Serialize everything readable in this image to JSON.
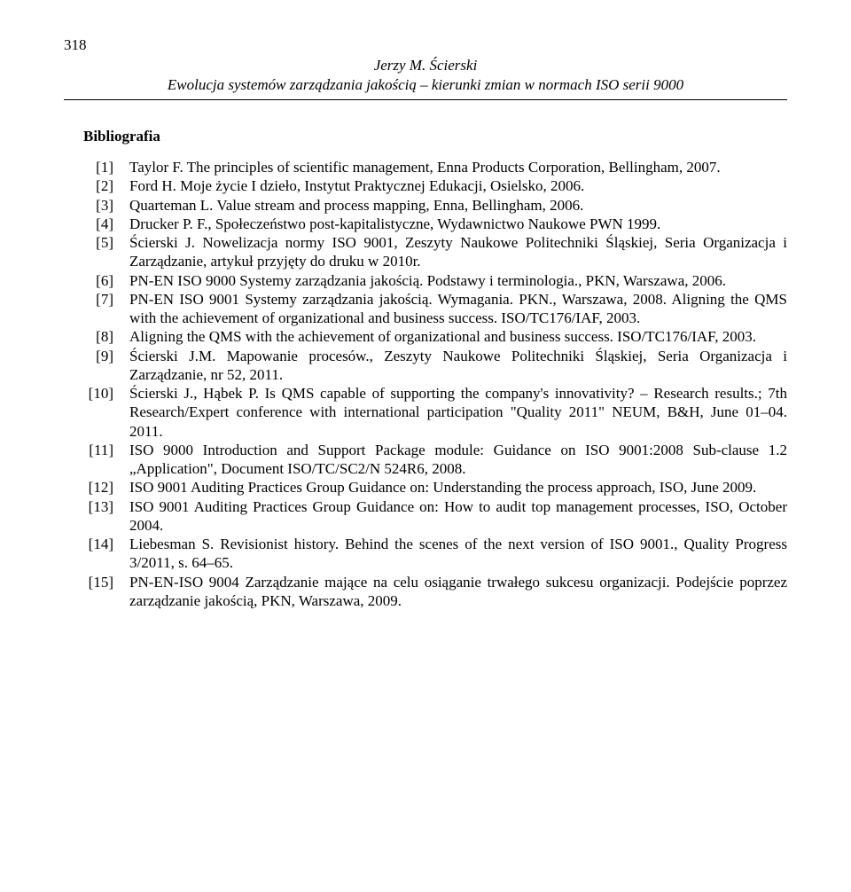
{
  "page_number": "318",
  "header": {
    "author": "Jerzy M. Ścierski",
    "title": "Ewolucja systemów zarządzania jakością – kierunki zmian w normach ISO serii 9000"
  },
  "section_heading": "Bibliografia",
  "bibliography": [
    {
      "num": "[1]",
      "text": "Taylor F. The principles of scientific management, Enna Products Corporation, Bellingham, 2007."
    },
    {
      "num": "[2]",
      "text": "Ford H. Moje życie I dzieło, Instytut Praktycznej Edukacji, Osielsko, 2006."
    },
    {
      "num": "[3]",
      "text": "Quarteman L. Value stream and process mapping, Enna, Bellingham, 2006."
    },
    {
      "num": "[4]",
      "text": "Drucker P. F., Społeczeństwo post-kapitalistyczne, Wydawnictwo Naukowe PWN 1999."
    },
    {
      "num": "[5]",
      "text": "Ścierski J. Nowelizacja normy ISO 9001, Zeszyty Naukowe Politechniki Śląskiej, Seria Organizacja i Zarządzanie, artykuł przyjęty do druku w 2010r."
    },
    {
      "num": "[6]",
      "text": "PN-EN ISO 9000 Systemy zarządzania jakością. Podstawy i terminologia., PKN, Warszawa, 2006."
    },
    {
      "num": "[7]",
      "text": "PN-EN ISO 9001 Systemy zarządzania jakością. Wymagania. PKN., Warszawa, 2008. Aligning the QMS with the achievement of organizational and business success. ISO/TC176/IAF, 2003."
    },
    {
      "num": "[8]",
      "text": "Aligning the QMS with the achievement of organizational and business success. ISO/TC176/IAF, 2003."
    },
    {
      "num": "[9]",
      "text": "Ścierski J.M. Mapowanie procesów., Zeszyty Naukowe Politechniki Śląskiej, Seria Organizacja i Zarządzanie, nr 52, 2011."
    },
    {
      "num": "[10]",
      "text": "Ścierski J., Hąbek P. Is QMS capable of supporting the company's innovativity? – Research results.; 7th Research/Expert conference with international participation \"Quality 2011\" NEUM, B&H, June 01–04. 2011."
    },
    {
      "num": "[11]",
      "text": "ISO 9000 Introduction and Support Package module: Guidance on ISO 9001:2008 Sub-clause 1.2 „Application\", Document ISO/TC/SC2/N 524R6, 2008."
    },
    {
      "num": "[12]",
      "text": "ISO 9001 Auditing Practices Group Guidance on: Understanding the process approach, ISO, June 2009."
    },
    {
      "num": "[13]",
      "text": "ISO 9001 Auditing Practices Group Guidance on: How to audit top management processes, ISO, October 2004."
    },
    {
      "num": "[14]",
      "text": "Liebesman S. Revisionist history. Behind the scenes of the next version of ISO 9001., Quality Progress 3/2011, s. 64–65."
    },
    {
      "num": "[15]",
      "text": "PN-EN-ISO 9004 Zarządzanie mające na celu osiąganie trwałego sukcesu organizacji. Podejście poprzez zarządzanie jakością, PKN, Warszawa, 2009."
    }
  ]
}
